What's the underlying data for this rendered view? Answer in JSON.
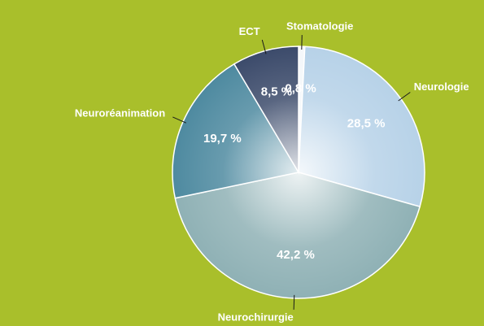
{
  "chart_data": {
    "type": "pie",
    "categories": [
      "Stomatologie",
      "Neurologie",
      "Neurochirurgie",
      "Neuroréanimation",
      "ECT"
    ],
    "values": [
      0.8,
      28.5,
      42.2,
      19.7,
      8.5
    ],
    "value_labels": [
      "0,8 %",
      "28,5 %",
      "42,2 %",
      "19,7 %",
      "8,5 %"
    ],
    "colors": [
      "#f4f7fa",
      "#b7d2e8",
      "#8fb1b5",
      "#4e8aa0",
      "#3c4b6b"
    ]
  }
}
